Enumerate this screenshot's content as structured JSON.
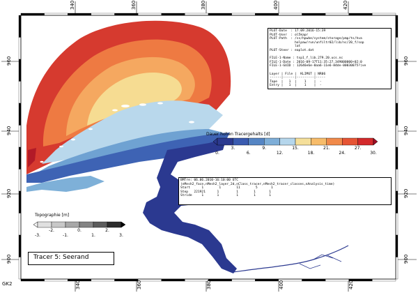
{
  "frame": {
    "top_ticks": [
      "340",
      "360",
      "380",
      "400",
      "420"
    ],
    "bottom_ticks": [
      "340",
      "360",
      "380",
      "400",
      "420"
    ],
    "left_ticks": [
      "960",
      "940",
      "920",
      "900"
    ],
    "right_ticks": [
      "960",
      "940",
      "920",
      "900"
    ],
    "corner_label": "GK2"
  },
  "plot_info": {
    "lines": [
      "PLOT-Date  : 17.09.2016-15:39",
      "PLOT-User  : ol5kapr",
      "PLOT-Path  : /ss/hpwbe/system/storage/pmp/ts/hva",
      "             holpaw/run/unfiltr02/lib/nc/20_f/sop",
      "             lat",
      "PLOT-Steer : eaplot.dat",
      "",
      "FILE-1-Name : tsp1_f_lib.279.20.ucs.nc",
      "FILE-1-Date : 2016-09-17T11:35:27.349000000+02:0",
      "FILE-1-GUID : 12646e6e-0aa6-11e6-84de-00030075?(ve",
      "",
      "Layer | File |  KLIM6T | NR06",
      "------|------|---------|-----",
      "Tape  |   1  |    1    |  -",
      "Entry |   1  |    1    |  -"
    ]
  },
  "time_info": {
    "lines": [
      "BMTre: 06.06.2010-16:10:00 UTC",
      "(nMesh2_face,nMesh2_layer_2d,nClass_tracer,nMesh2_tracer_classes,nAnalysis_time)",
      "Start      1        1        11        5       1",
      "Step   221921      1         1        1       1",
      "Stride     1       1         1        1       1"
    ]
  },
  "tracer_legend": {
    "title": "Dauer hohen Tracergehalts  [d]",
    "ticks": [
      "0.",
      "3.",
      "6.",
      "9.",
      "12.",
      "15.",
      "18.",
      "21.",
      "24.",
      "27.",
      "30."
    ],
    "colors": [
      "#2b3990",
      "#3a5bb0",
      "#5585c4",
      "#7eaed8",
      "#b5d6ec",
      "#f5df9a",
      "#f7bc6a",
      "#f18a4a",
      "#e65434",
      "#d3292b",
      "#a00d26"
    ]
  },
  "topo_legend": {
    "title": "Topographie [m]",
    "ticks": [
      "-3.",
      "-2.",
      "-1.",
      "0.",
      "1.",
      "2.",
      "3."
    ],
    "colors": [
      "#f4f4f4",
      "#e0e0e0",
      "#c8c8c8",
      "#a8a8a8",
      "#848484",
      "#5c5c5c",
      "#2c2c2c",
      "#000000"
    ]
  },
  "title_box": {
    "text": "Tracer 5: Seerand"
  },
  "colors": {
    "sea_dark": "#2b3990",
    "sea_mid": "#3a5bb0",
    "land": "#ffffff",
    "frame": "#000000"
  }
}
